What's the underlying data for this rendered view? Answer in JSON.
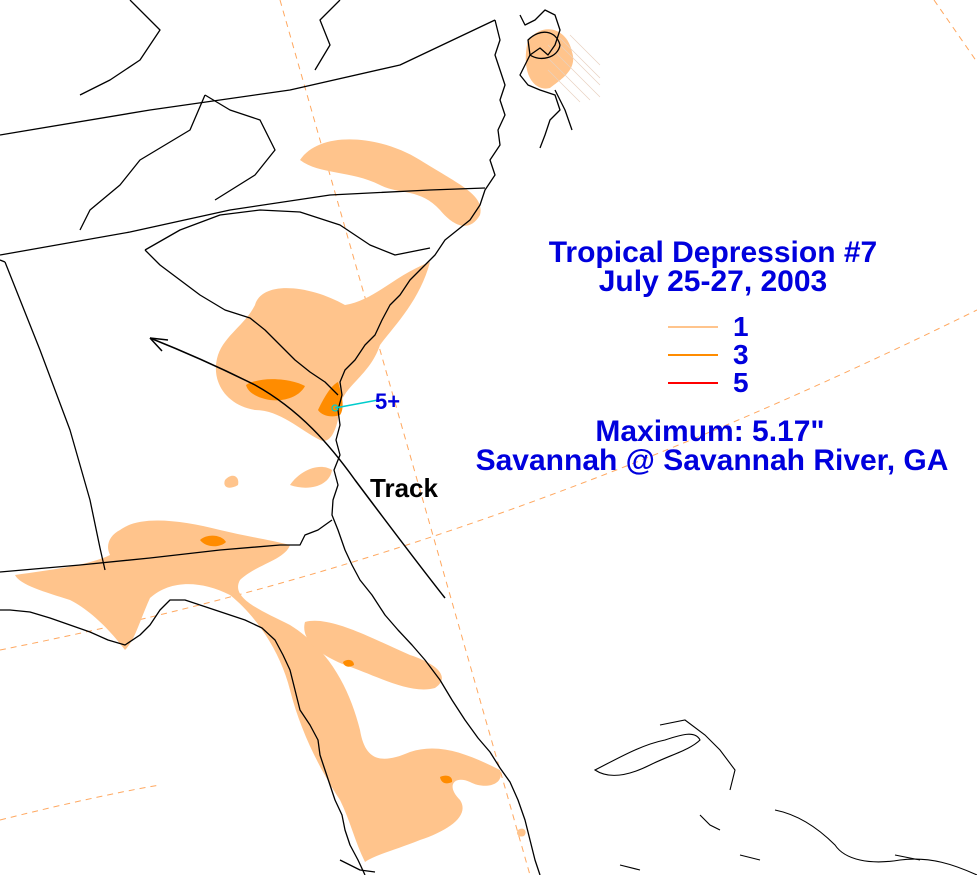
{
  "title": {
    "line1": "Tropical Depression #7",
    "line2": "July 25-27, 2003"
  },
  "legend": [
    {
      "label": "1",
      "color": "#ffc48c"
    },
    {
      "label": "3",
      "color": "#ff8c00"
    },
    {
      "label": "5",
      "color": "#ff0000"
    }
  ],
  "maximum": {
    "line1": "Maximum:  5.17\"",
    "line2": "Savannah @ Savannah River, GA"
  },
  "annotations": {
    "max_marker": "5+",
    "track_label": "Track"
  },
  "colors": {
    "text": "#0000dd",
    "rain_1": "#ffc48c",
    "rain_3": "#ff8c00",
    "rain_5": "#ff0000",
    "lines": "#000000",
    "grid": "#ffa860",
    "max_marker": "#00cccc"
  }
}
